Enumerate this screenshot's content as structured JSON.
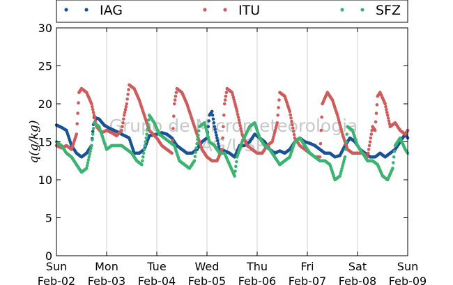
{
  "chart_data": {
    "type": "scatter",
    "ylabel": "q(g/kg)",
    "ylim": [
      0,
      30
    ],
    "yticks": [
      "0",
      "5",
      "10",
      "15",
      "20",
      "25",
      "30"
    ],
    "xlim": [
      0,
      7
    ],
    "xticks": [
      {
        "day": "Sun",
        "date": "Feb-02"
      },
      {
        "day": "Mon",
        "date": "Feb-03"
      },
      {
        "day": "Tue",
        "date": "Feb-04"
      },
      {
        "day": "Wed",
        "date": "Feb-05"
      },
      {
        "day": "Thu",
        "date": "Feb-06"
      },
      {
        "day": "Fri",
        "date": "Feb-07"
      },
      {
        "day": "Sat",
        "date": "Feb-08"
      },
      {
        "day": "Sun",
        "date": "Feb-09"
      }
    ],
    "x_unit": "days since Feb-02 00:00",
    "grid": "vertical",
    "legend_position": "top",
    "watermark": [
      "Grupo de Micrometeorologia",
      "IAG/USP"
    ],
    "series": [
      {
        "name": "IAG",
        "color": "#1a5394",
        "points": [
          [
            0.0,
            17.2
          ],
          [
            0.1,
            16.9
          ],
          [
            0.2,
            16.5
          ],
          [
            0.3,
            14.5
          ],
          [
            0.4,
            13.5
          ],
          [
            0.5,
            13.0
          ],
          [
            0.6,
            13.5
          ],
          [
            0.7,
            14.5
          ],
          [
            0.75,
            18.2
          ],
          [
            0.85,
            18.0
          ],
          [
            0.95,
            17.2
          ],
          [
            1.05,
            16.8
          ],
          [
            1.15,
            16.5
          ],
          [
            1.3,
            16.0
          ],
          [
            1.45,
            15.5
          ],
          [
            1.55,
            13.5
          ],
          [
            1.65,
            13.5
          ],
          [
            1.75,
            14.0
          ],
          [
            1.85,
            15.8
          ],
          [
            2.0,
            16.0
          ],
          [
            2.1,
            16.2
          ],
          [
            2.2,
            16.0
          ],
          [
            2.3,
            15.5
          ],
          [
            2.4,
            14.5
          ],
          [
            2.5,
            14.0
          ],
          [
            2.6,
            13.5
          ],
          [
            2.7,
            13.5
          ],
          [
            2.8,
            14.0
          ],
          [
            2.9,
            15.0
          ],
          [
            3.0,
            15.5
          ],
          [
            3.05,
            18.5
          ],
          [
            3.1,
            19.0
          ],
          [
            3.15,
            17.0
          ],
          [
            3.25,
            14.0
          ],
          [
            3.35,
            13.8
          ],
          [
            3.45,
            13.5
          ],
          [
            3.55,
            13.0
          ],
          [
            3.65,
            14.5
          ],
          [
            3.75,
            14.5
          ],
          [
            3.85,
            15.0
          ],
          [
            3.95,
            16.0
          ],
          [
            4.05,
            15.5
          ],
          [
            4.15,
            15.0
          ],
          [
            4.25,
            14.0
          ],
          [
            4.35,
            13.5
          ],
          [
            4.45,
            13.8
          ],
          [
            4.55,
            13.5
          ],
          [
            4.65,
            14.0
          ],
          [
            4.75,
            15.0
          ],
          [
            4.85,
            15.5
          ],
          [
            4.95,
            15.0
          ],
          [
            5.05,
            14.8
          ],
          [
            5.15,
            14.5
          ],
          [
            5.25,
            14.0
          ],
          [
            5.35,
            13.5
          ],
          [
            5.45,
            13.5
          ],
          [
            5.55,
            13.0
          ],
          [
            5.65,
            13.2
          ],
          [
            5.75,
            14.5
          ],
          [
            5.85,
            15.5
          ],
          [
            5.95,
            15.0
          ],
          [
            6.05,
            14.0
          ],
          [
            6.15,
            13.5
          ],
          [
            6.25,
            13.0
          ],
          [
            6.35,
            13.0
          ],
          [
            6.45,
            13.5
          ],
          [
            6.55,
            13.0
          ],
          [
            6.65,
            13.5
          ],
          [
            6.75,
            14.0
          ],
          [
            6.85,
            15.0
          ],
          [
            6.95,
            16.0
          ],
          [
            7.0,
            15.5
          ]
        ]
      },
      {
        "name": "ITU",
        "color": "#cd5c5c",
        "points": [
          [
            0.0,
            14.5
          ],
          [
            0.1,
            14.2
          ],
          [
            0.2,
            14.5
          ],
          [
            0.3,
            14.0
          ],
          [
            0.4,
            16.0
          ],
          [
            0.45,
            21.5
          ],
          [
            0.5,
            22.0
          ],
          [
            0.6,
            21.5
          ],
          [
            0.7,
            20.0
          ],
          [
            0.8,
            17.0
          ],
          [
            0.9,
            16.2
          ],
          [
            1.0,
            16.5
          ],
          [
            1.1,
            16.2
          ],
          [
            1.2,
            15.8
          ],
          [
            1.3,
            16.5
          ],
          [
            1.35,
            18.5
          ],
          [
            1.4,
            20.0
          ],
          [
            1.45,
            22.5
          ],
          [
            1.55,
            22.0
          ],
          [
            1.65,
            20.5
          ],
          [
            1.75,
            18.5
          ],
          [
            1.85,
            16.5
          ],
          [
            2.0,
            15.5
          ],
          [
            2.1,
            14.5
          ],
          [
            2.2,
            14.0
          ],
          [
            2.3,
            13.5
          ],
          [
            2.35,
            20.0
          ],
          [
            2.4,
            22.0
          ],
          [
            2.5,
            21.5
          ],
          [
            2.6,
            20.0
          ],
          [
            2.7,
            18.0
          ],
          [
            2.8,
            16.0
          ],
          [
            2.9,
            14.0
          ],
          [
            3.0,
            13.0
          ],
          [
            3.1,
            12.5
          ],
          [
            3.2,
            12.5
          ],
          [
            3.3,
            14.0
          ],
          [
            3.35,
            20.0
          ],
          [
            3.4,
            22.0
          ],
          [
            3.5,
            21.5
          ],
          [
            3.6,
            19.0
          ],
          [
            3.7,
            16.0
          ],
          [
            3.8,
            14.5
          ],
          [
            3.9,
            14.0
          ],
          [
            4.0,
            13.5
          ],
          [
            4.1,
            13.5
          ],
          [
            4.2,
            14.5
          ],
          [
            4.3,
            15.0
          ],
          [
            4.4,
            17.5
          ],
          [
            4.45,
            21.5
          ],
          [
            4.55,
            21.0
          ],
          [
            4.65,
            19.0
          ],
          [
            4.75,
            15.5
          ],
          [
            4.85,
            14.5
          ],
          [
            4.95,
            14.0
          ],
          [
            5.05,
            13.5
          ],
          [
            5.15,
            13.0
          ],
          [
            5.25,
            13.0
          ],
          [
            5.3,
            20.0
          ],
          [
            5.4,
            21.5
          ],
          [
            5.5,
            20.5
          ],
          [
            5.6,
            18.5
          ],
          [
            5.7,
            16.0
          ],
          [
            5.8,
            14.0
          ],
          [
            5.9,
            13.5
          ],
          [
            6.0,
            13.5
          ],
          [
            6.1,
            13.5
          ],
          [
            6.2,
            13.0
          ],
          [
            6.3,
            17.0
          ],
          [
            6.35,
            16.5
          ],
          [
            6.4,
            21.0
          ],
          [
            6.45,
            21.5
          ],
          [
            6.55,
            20.0
          ],
          [
            6.65,
            17.0
          ],
          [
            6.75,
            17.5
          ],
          [
            6.85,
            16.5
          ],
          [
            6.95,
            16.0
          ],
          [
            7.0,
            16.5
          ]
        ]
      },
      {
        "name": "SFZ",
        "color": "#3cb371",
        "points": [
          [
            0.0,
            15.0
          ],
          [
            0.1,
            14.5
          ],
          [
            0.2,
            13.5
          ],
          [
            0.3,
            13.0
          ],
          [
            0.4,
            12.0
          ],
          [
            0.5,
            11.0
          ],
          [
            0.6,
            11.5
          ],
          [
            0.7,
            14.5
          ],
          [
            0.75,
            17.5
          ],
          [
            0.85,
            17.0
          ],
          [
            0.95,
            15.0
          ],
          [
            1.0,
            14.0
          ],
          [
            1.1,
            14.5
          ],
          [
            1.2,
            14.5
          ],
          [
            1.3,
            14.5
          ],
          [
            1.4,
            14.0
          ],
          [
            1.5,
            13.5
          ],
          [
            1.6,
            12.5
          ],
          [
            1.7,
            12.0
          ],
          [
            1.8,
            16.0
          ],
          [
            1.85,
            18.5
          ],
          [
            1.95,
            17.5
          ],
          [
            2.05,
            16.0
          ],
          [
            2.15,
            15.5
          ],
          [
            2.25,
            15.0
          ],
          [
            2.35,
            14.5
          ],
          [
            2.45,
            12.5
          ],
          [
            2.55,
            12.0
          ],
          [
            2.65,
            11.5
          ],
          [
            2.75,
            12.5
          ],
          [
            2.85,
            17.0
          ],
          [
            2.95,
            17.5
          ],
          [
            3.05,
            15.0
          ],
          [
            3.15,
            14.5
          ],
          [
            3.25,
            13.5
          ],
          [
            3.35,
            13.5
          ],
          [
            3.45,
            12.0
          ],
          [
            3.55,
            10.5
          ],
          [
            3.6,
            13.0
          ],
          [
            3.7,
            15.0
          ],
          [
            3.85,
            17.0
          ],
          [
            3.95,
            17.5
          ],
          [
            4.05,
            15.5
          ],
          [
            4.15,
            14.5
          ],
          [
            4.25,
            14.0
          ],
          [
            4.35,
            13.0
          ],
          [
            4.45,
            12.0
          ],
          [
            4.55,
            12.5
          ],
          [
            4.65,
            13.0
          ],
          [
            4.75,
            15.0
          ],
          [
            4.85,
            15.5
          ],
          [
            4.95,
            14.5
          ],
          [
            5.05,
            13.5
          ],
          [
            5.15,
            13.0
          ],
          [
            5.25,
            12.5
          ],
          [
            5.35,
            12.5
          ],
          [
            5.45,
            12.0
          ],
          [
            5.55,
            10.0
          ],
          [
            5.65,
            10.5
          ],
          [
            5.75,
            13.0
          ],
          [
            5.8,
            17.0
          ],
          [
            5.9,
            16.5
          ],
          [
            6.0,
            14.5
          ],
          [
            6.1,
            13.5
          ],
          [
            6.2,
            12.5
          ],
          [
            6.3,
            12.5
          ],
          [
            6.4,
            12.0
          ],
          [
            6.5,
            10.5
          ],
          [
            6.6,
            10.0
          ],
          [
            6.7,
            11.5
          ],
          [
            6.75,
            14.5
          ],
          [
            6.85,
            15.5
          ],
          [
            6.95,
            14.0
          ],
          [
            7.0,
            13.5
          ]
        ]
      }
    ]
  }
}
